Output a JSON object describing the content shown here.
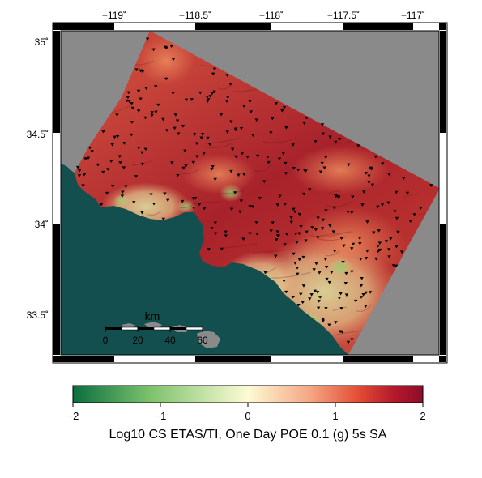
{
  "map": {
    "longitude_ticks": [
      "−119˚",
      "−118.5˚",
      "−118˚",
      "−117.5˚",
      "−117˚"
    ],
    "latitude_ticks": [
      "35˚",
      "34.5˚",
      "34˚",
      "33.5˚"
    ],
    "scale_bar": {
      "unit": "km",
      "ticks": [
        "0",
        "20",
        "40",
        "60"
      ]
    },
    "colorbar": {
      "ticks": [
        "−2",
        "−1",
        "0",
        "1",
        "2"
      ],
      "label": "Log10 CS ETAS/TI, One Day POE 0.1 (g) 5s SA",
      "colors": [
        "#0b6e3e",
        "#7cc26c",
        "#fdfbd4",
        "#f4a582",
        "#e34a33",
        "#b2182b",
        "#8f0d2a"
      ]
    },
    "colors": {
      "ocean": "#134f4e",
      "no_data": "#8a8a8a",
      "stations": "#000000"
    }
  }
}
